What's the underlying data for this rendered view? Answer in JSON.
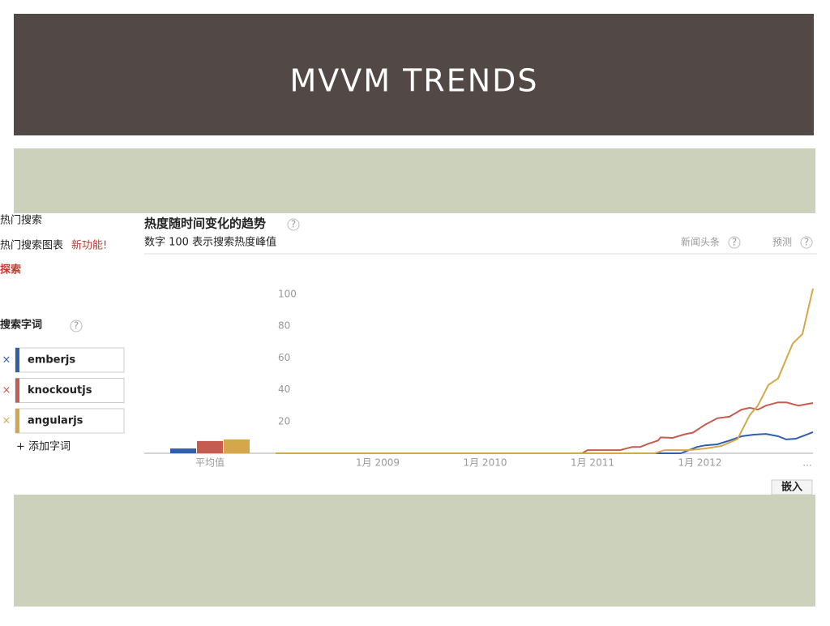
{
  "slide_title": "MVVM TRENDS",
  "sidebar": {
    "hot_searches": "热门搜索",
    "hot_charts": "热门搜索图表",
    "new_feature": "新功能!",
    "explore": "探索",
    "search_terms": "搜索字词",
    "remove_icon": "×",
    "add_term": "+ 添加字词"
  },
  "header": {
    "title": "热度随时间变化的趋势",
    "subtitle": "数字 100 表示搜索热度峰值",
    "news": "新闻头条",
    "forecast": "预测",
    "help_icon": "?",
    "embed": "嵌入"
  },
  "chart_data": {
    "type": "line",
    "xlim": [
      2008.049,
      2013.053
    ],
    "xticks": [
      {
        "value": 2009,
        "label": "1月 2009"
      },
      {
        "value": 2010,
        "label": "1月 2010"
      },
      {
        "value": 2011,
        "label": "1月 2011"
      },
      {
        "value": 2012,
        "label": "1月 2012"
      },
      {
        "value": 2013,
        "label": "..."
      }
    ],
    "ylim": [
      0,
      104
    ],
    "yticks": [
      20,
      40,
      60,
      80,
      100
    ],
    "grid": false,
    "averages": {
      "label": "平均值",
      "values": [
        3,
        7.7,
        8.7
      ]
    },
    "series": [
      {
        "name": "emberjs",
        "color": "#2f5fae",
        "x": [
          2008.049,
          2011.823,
          2011.974,
          2012.049,
          2012.162,
          2012.275,
          2012.389,
          2012.502,
          2012.615,
          2012.728,
          2012.804,
          2012.894,
          2013.053
        ],
        "values": [
          0,
          0,
          4,
          5,
          5.6,
          8,
          10.7,
          11.7,
          12.2,
          10.7,
          8.7,
          9.2,
          13.3
        ]
      },
      {
        "name": "knockoutjs",
        "color": "#c65b4f",
        "x": [
          2008.049,
          2010.902,
          2010.955,
          2011.257,
          2011.37,
          2011.445,
          2011.521,
          2011.611,
          2011.634,
          2011.747,
          2011.86,
          2011.936,
          2012.049,
          2012.162,
          2012.275,
          2012.389,
          2012.464,
          2012.54,
          2012.615,
          2012.728,
          2012.804,
          2012.917,
          2013.053
        ],
        "values": [
          0,
          0,
          2,
          2,
          4,
          4,
          6,
          8,
          10,
          9.7,
          12,
          13,
          18,
          22,
          23,
          27.5,
          28.6,
          27.5,
          30,
          32,
          32,
          30,
          31.6
        ]
      },
      {
        "name": "angularjs",
        "color": "#d4a84a",
        "x": [
          2008.049,
          2011.581,
          2011.672,
          2011.898,
          2012.049,
          2012.2,
          2012.351,
          2012.464,
          2012.54,
          2012.638,
          2012.728,
          2012.864,
          2012.955,
          2013.053
        ],
        "values": [
          0,
          0,
          2,
          2,
          3,
          4.6,
          9,
          24,
          30,
          43,
          47,
          69,
          75,
          103.6
        ]
      }
    ]
  }
}
